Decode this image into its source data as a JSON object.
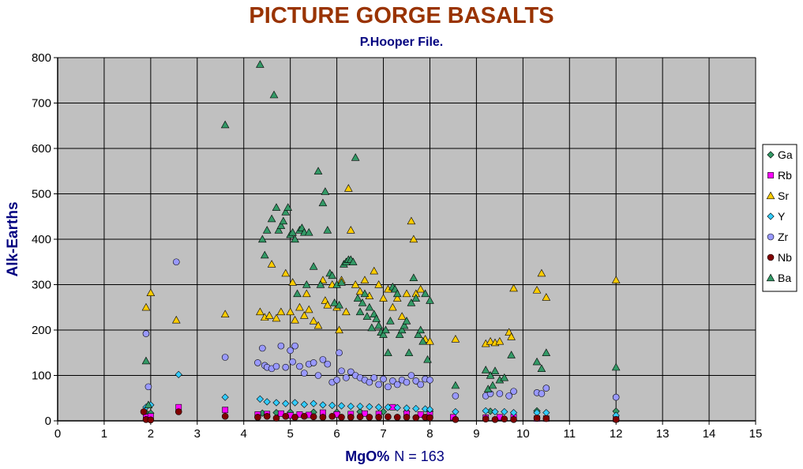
{
  "chart_data": {
    "type": "scatter",
    "title": "PICTURE GORGE BASALTS",
    "subtitle": "P.Hooper File.",
    "xlabel_main": "MgO%",
    "xlabel_note": "N = 163",
    "ylabel": "Alk-Earths",
    "xlim": [
      0,
      15
    ],
    "ylim": [
      0,
      800
    ],
    "x_ticks": [
      0,
      1,
      2,
      3,
      4,
      5,
      6,
      7,
      8,
      9,
      10,
      11,
      12,
      13,
      14,
      15
    ],
    "y_ticks": [
      0,
      100,
      200,
      300,
      400,
      500,
      600,
      700,
      800
    ],
    "grid": true,
    "plot_background": "#c0c0c0",
    "legend_position": "right",
    "series": [
      {
        "name": "Ga",
        "marker": "diamond",
        "color": "#339966",
        "points": [
          [
            1.9,
            18
          ],
          [
            2,
            17
          ],
          [
            4.4,
            17
          ],
          [
            4.7,
            18
          ],
          [
            5,
            19
          ],
          [
            5.5,
            19
          ],
          [
            6,
            19
          ],
          [
            6.5,
            20
          ],
          [
            7,
            20
          ],
          [
            7.5,
            20
          ],
          [
            8,
            21
          ],
          [
            9.3,
            21
          ],
          [
            10.3,
            22
          ],
          [
            12,
            21
          ]
        ]
      },
      {
        "name": "Rb",
        "marker": "square",
        "color": "#ff00ff",
        "points": [
          [
            1.9,
            8
          ],
          [
            2,
            10
          ],
          [
            2.6,
            30
          ],
          [
            3.6,
            24
          ],
          [
            4.3,
            14
          ],
          [
            4.5,
            15
          ],
          [
            4.8,
            16
          ],
          [
            5,
            12
          ],
          [
            5.2,
            14
          ],
          [
            5.4,
            13
          ],
          [
            5.7,
            18
          ],
          [
            6,
            14
          ],
          [
            6.3,
            15
          ],
          [
            6.6,
            16
          ],
          [
            6.9,
            15
          ],
          [
            7.2,
            30
          ],
          [
            7.5,
            16
          ],
          [
            7.8,
            14
          ],
          [
            8,
            14
          ],
          [
            8.5,
            8
          ],
          [
            9.2,
            7
          ],
          [
            9.5,
            8
          ],
          [
            9.8,
            8
          ],
          [
            10.3,
            5
          ],
          [
            10.5,
            5
          ],
          [
            12,
            4
          ]
        ]
      },
      {
        "name": "Sr",
        "marker": "triangle",
        "color": "#ffcc00",
        "points": [
          [
            1.9,
            250
          ],
          [
            2,
            282
          ],
          [
            2.55,
            222
          ],
          [
            3.6,
            235
          ],
          [
            4.35,
            240
          ],
          [
            4.45,
            228
          ],
          [
            4.55,
            232
          ],
          [
            4.6,
            345
          ],
          [
            4.7,
            226
          ],
          [
            4.8,
            240
          ],
          [
            4.9,
            325
          ],
          [
            5,
            240
          ],
          [
            5.05,
            305
          ],
          [
            5.1,
            222
          ],
          [
            5.2,
            250
          ],
          [
            5.3,
            232
          ],
          [
            5.35,
            280
          ],
          [
            5.4,
            245
          ],
          [
            5.5,
            220
          ],
          [
            5.6,
            210
          ],
          [
            5.7,
            310
          ],
          [
            5.75,
            265
          ],
          [
            5.8,
            255
          ],
          [
            5.9,
            300
          ],
          [
            6,
            250
          ],
          [
            6.05,
            200
          ],
          [
            6.1,
            310
          ],
          [
            6.2,
            240
          ],
          [
            6.25,
            512
          ],
          [
            6.3,
            420
          ],
          [
            6.4,
            300
          ],
          [
            6.5,
            285
          ],
          [
            6.6,
            310
          ],
          [
            6.7,
            275
          ],
          [
            6.8,
            330
          ],
          [
            6.9,
            300
          ],
          [
            7,
            270
          ],
          [
            7.1,
            290
          ],
          [
            7.2,
            250
          ],
          [
            7.3,
            270
          ],
          [
            7.4,
            230
          ],
          [
            7.5,
            280
          ],
          [
            7.6,
            440
          ],
          [
            7.65,
            400
          ],
          [
            7.7,
            280
          ],
          [
            7.8,
            290
          ],
          [
            7.9,
            180
          ],
          [
            8,
            175
          ],
          [
            8.55,
            180
          ],
          [
            9.2,
            170
          ],
          [
            9.3,
            175
          ],
          [
            9.4,
            172
          ],
          [
            9.5,
            175
          ],
          [
            9.7,
            195
          ],
          [
            9.75,
            185
          ],
          [
            9.8,
            292
          ],
          [
            10.3,
            288
          ],
          [
            10.4,
            325
          ],
          [
            10.5,
            272
          ],
          [
            12,
            310
          ]
        ]
      },
      {
        "name": "Y",
        "marker": "diamond",
        "color": "#33ccff",
        "points": [
          [
            1.9,
            30
          ],
          [
            2,
            35
          ],
          [
            2.6,
            102
          ],
          [
            3.6,
            52
          ],
          [
            4.35,
            48
          ],
          [
            4.5,
            42
          ],
          [
            4.7,
            40
          ],
          [
            4.9,
            38
          ],
          [
            5.1,
            40
          ],
          [
            5.3,
            36
          ],
          [
            5.5,
            38
          ],
          [
            5.7,
            35
          ],
          [
            5.9,
            34
          ],
          [
            6.1,
            33
          ],
          [
            6.3,
            32
          ],
          [
            6.5,
            32
          ],
          [
            6.7,
            31
          ],
          [
            6.9,
            30
          ],
          [
            7.1,
            30
          ],
          [
            7.3,
            29
          ],
          [
            7.5,
            28
          ],
          [
            7.7,
            27
          ],
          [
            7.9,
            26
          ],
          [
            8,
            25
          ],
          [
            8.55,
            20
          ],
          [
            9.2,
            22
          ],
          [
            9.4,
            20
          ],
          [
            9.6,
            20
          ],
          [
            9.8,
            18
          ],
          [
            10.3,
            18
          ],
          [
            10.5,
            18
          ],
          [
            12,
            12
          ]
        ]
      },
      {
        "name": "Zr",
        "marker": "circle",
        "color": "#9999ff",
        "points": [
          [
            1.9,
            192
          ],
          [
            1.95,
            75
          ],
          [
            2.55,
            350
          ],
          [
            3.6,
            140
          ],
          [
            4.3,
            128
          ],
          [
            4.4,
            160
          ],
          [
            4.45,
            122
          ],
          [
            4.5,
            118
          ],
          [
            4.6,
            115
          ],
          [
            4.7,
            120
          ],
          [
            4.8,
            165
          ],
          [
            4.9,
            118
          ],
          [
            5,
            155
          ],
          [
            5.05,
            130
          ],
          [
            5.1,
            165
          ],
          [
            5.2,
            120
          ],
          [
            5.3,
            105
          ],
          [
            5.4,
            125
          ],
          [
            5.5,
            128
          ],
          [
            5.6,
            100
          ],
          [
            5.7,
            135
          ],
          [
            5.8,
            125
          ],
          [
            5.9,
            85
          ],
          [
            6,
            90
          ],
          [
            6.05,
            150
          ],
          [
            6.1,
            110
          ],
          [
            6.2,
            95
          ],
          [
            6.3,
            108
          ],
          [
            6.4,
            100
          ],
          [
            6.5,
            95
          ],
          [
            6.6,
            90
          ],
          [
            6.7,
            85
          ],
          [
            6.8,
            95
          ],
          [
            6.9,
            80
          ],
          [
            7,
            92
          ],
          [
            7.1,
            75
          ],
          [
            7.2,
            88
          ],
          [
            7.3,
            80
          ],
          [
            7.4,
            90
          ],
          [
            7.5,
            85
          ],
          [
            7.6,
            100
          ],
          [
            7.7,
            88
          ],
          [
            7.8,
            80
          ],
          [
            7.9,
            92
          ],
          [
            8,
            90
          ],
          [
            8.55,
            55
          ],
          [
            9.2,
            55
          ],
          [
            9.3,
            60
          ],
          [
            9.5,
            60
          ],
          [
            9.7,
            55
          ],
          [
            9.8,
            65
          ],
          [
            10.3,
            62
          ],
          [
            10.4,
            60
          ],
          [
            10.5,
            72
          ],
          [
            12,
            52
          ]
        ]
      },
      {
        "name": "Nb",
        "marker": "circle",
        "color": "#800000",
        "points": [
          [
            1.85,
            20
          ],
          [
            1.9,
            3
          ],
          [
            2,
            2
          ],
          [
            2.6,
            20
          ],
          [
            3.6,
            10
          ],
          [
            4.3,
            8
          ],
          [
            4.5,
            10
          ],
          [
            4.7,
            6
          ],
          [
            4.9,
            10
          ],
          [
            5.1,
            8
          ],
          [
            5.3,
            10
          ],
          [
            5.5,
            9
          ],
          [
            5.7,
            8
          ],
          [
            5.9,
            10
          ],
          [
            6.1,
            8
          ],
          [
            6.3,
            8
          ],
          [
            6.5,
            9
          ],
          [
            6.7,
            8
          ],
          [
            6.9,
            8
          ],
          [
            7.1,
            9
          ],
          [
            7.3,
            8
          ],
          [
            7.5,
            8
          ],
          [
            7.7,
            7
          ],
          [
            7.9,
            8
          ],
          [
            8,
            7
          ],
          [
            8.55,
            3
          ],
          [
            9.2,
            4
          ],
          [
            9.4,
            3
          ],
          [
            9.6,
            4
          ],
          [
            9.8,
            3
          ],
          [
            10.3,
            6
          ],
          [
            10.5,
            5
          ],
          [
            12,
            3
          ]
        ]
      },
      {
        "name": "Ba",
        "marker": "triangle",
        "color": "#339966",
        "points": [
          [
            1.9,
            132
          ],
          [
            1.95,
            35
          ],
          [
            3.6,
            652
          ],
          [
            4.35,
            785
          ],
          [
            4.4,
            400
          ],
          [
            4.45,
            365
          ],
          [
            4.5,
            420
          ],
          [
            4.6,
            445
          ],
          [
            4.65,
            718
          ],
          [
            4.7,
            470
          ],
          [
            4.75,
            420
          ],
          [
            4.8,
            430
          ],
          [
            4.85,
            440
          ],
          [
            4.9,
            460
          ],
          [
            4.95,
            470
          ],
          [
            5,
            410
          ],
          [
            5.05,
            415
          ],
          [
            5.1,
            400
          ],
          [
            5.15,
            280
          ],
          [
            5.2,
            420
          ],
          [
            5.25,
            425
          ],
          [
            5.3,
            415
          ],
          [
            5.35,
            300
          ],
          [
            5.4,
            415
          ],
          [
            5.5,
            340
          ],
          [
            5.6,
            550
          ],
          [
            5.65,
            300
          ],
          [
            5.7,
            480
          ],
          [
            5.75,
            505
          ],
          [
            5.8,
            420
          ],
          [
            5.85,
            325
          ],
          [
            5.9,
            320
          ],
          [
            5.95,
            260
          ],
          [
            6,
            300
          ],
          [
            6.05,
            255
          ],
          [
            6.1,
            305
          ],
          [
            6.15,
            345
          ],
          [
            6.2,
            350
          ],
          [
            6.25,
            355
          ],
          [
            6.3,
            355
          ],
          [
            6.35,
            350
          ],
          [
            6.4,
            580
          ],
          [
            6.45,
            270
          ],
          [
            6.5,
            240
          ],
          [
            6.55,
            260
          ],
          [
            6.6,
            280
          ],
          [
            6.65,
            230
          ],
          [
            6.7,
            250
          ],
          [
            6.75,
            205
          ],
          [
            6.8,
            235
          ],
          [
            6.85,
            225
          ],
          [
            6.9,
            210
          ],
          [
            6.95,
            195
          ],
          [
            7,
            190
          ],
          [
            7.05,
            200
          ],
          [
            7.1,
            150
          ],
          [
            7.15,
            220
          ],
          [
            7.2,
            295
          ],
          [
            7.25,
            290
          ],
          [
            7.3,
            280
          ],
          [
            7.35,
            190
          ],
          [
            7.4,
            200
          ],
          [
            7.45,
            210
          ],
          [
            7.5,
            220
          ],
          [
            7.55,
            150
          ],
          [
            7.6,
            260
          ],
          [
            7.65,
            315
          ],
          [
            7.7,
            270
          ],
          [
            7.75,
            190
          ],
          [
            7.8,
            200
          ],
          [
            7.85,
            175
          ],
          [
            7.9,
            280
          ],
          [
            7.95,
            135
          ],
          [
            8,
            265
          ],
          [
            8.55,
            78
          ],
          [
            9.2,
            112
          ],
          [
            9.25,
            70
          ],
          [
            9.3,
            100
          ],
          [
            9.35,
            78
          ],
          [
            9.4,
            110
          ],
          [
            9.5,
            90
          ],
          [
            9.6,
            95
          ],
          [
            9.75,
            145
          ],
          [
            10.3,
            130
          ],
          [
            10.4,
            115
          ],
          [
            10.5,
            150
          ],
          [
            12,
            118
          ]
        ]
      }
    ]
  }
}
